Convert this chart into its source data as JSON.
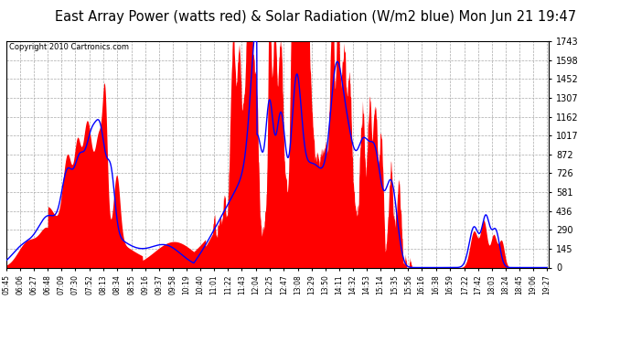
{
  "title": "East Array Power (watts red) & Solar Radiation (W/m2 blue) Mon Jun 21 19:47",
  "copyright": "Copyright 2010 Cartronics.com",
  "ymax": 1743.0,
  "yticks": [
    0.0,
    145.3,
    290.5,
    435.8,
    581.0,
    726.3,
    871.5,
    1016.8,
    1162.0,
    1307.3,
    1452.5,
    1597.8,
    1743.0
  ],
  "background_color": "#ffffff",
  "plot_bg_color": "#ffffff",
  "grid_color": "#aaaaaa",
  "title_fontsize": 10.5,
  "x_labels": [
    "05:45",
    "06:06",
    "06:27",
    "06:48",
    "07:09",
    "07:30",
    "07:52",
    "08:13",
    "08:34",
    "08:55",
    "09:16",
    "09:37",
    "09:58",
    "10:19",
    "10:40",
    "11:01",
    "11:22",
    "11:43",
    "12:04",
    "12:25",
    "12:47",
    "13:08",
    "13:29",
    "13:50",
    "14:11",
    "14:32",
    "14:53",
    "15:14",
    "15:35",
    "15:56",
    "16:16",
    "16:38",
    "16:59",
    "17:22",
    "17:42",
    "18:03",
    "18:24",
    "18:45",
    "19:06",
    "19:27"
  ]
}
